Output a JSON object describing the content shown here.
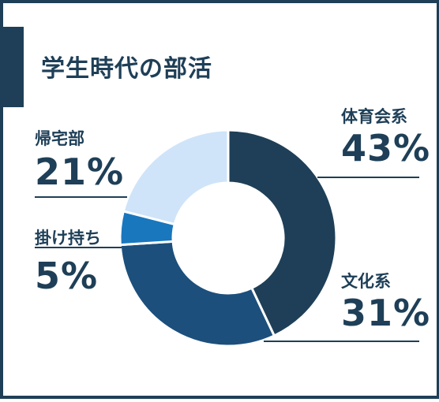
{
  "title": "学生時代の部活",
  "colors": {
    "border": "#1e3f57",
    "text": "#1e3f57"
  },
  "chart_data": {
    "type": "pie",
    "donut": true,
    "categories": [
      "体育会系",
      "文化系",
      "掛け持ち",
      "帰宅部"
    ],
    "values": [
      43,
      31,
      5,
      21
    ],
    "labels": [
      "43%",
      "31%",
      "5%",
      "21%"
    ],
    "colors": [
      "#1e3f57",
      "#1c4f7c",
      "#1977be",
      "#cfe4f9"
    ],
    "start_angle": 0,
    "direction": "clockwise"
  }
}
